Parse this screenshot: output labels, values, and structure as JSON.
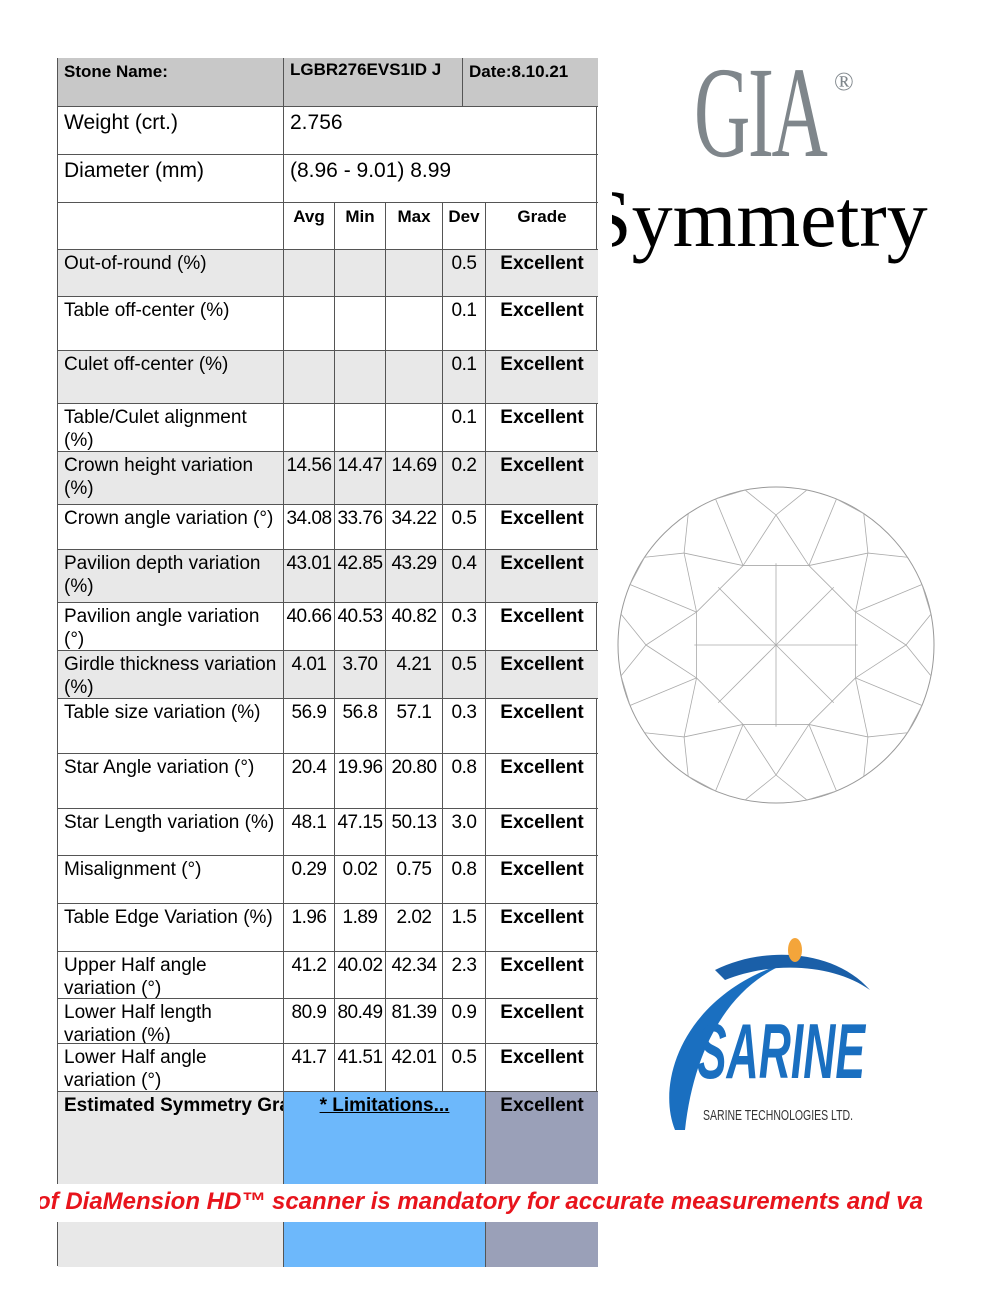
{
  "header": {
    "stone_label": "Stone Name:",
    "stone_value": "LGBR276EVS1ID J",
    "date": "Date:8.10.21"
  },
  "weight": {
    "label": "Weight (crt.)",
    "value": "2.756"
  },
  "diameter": {
    "label": "Diameter (mm)",
    "value": "(8.96 - 9.01) 8.99"
  },
  "columns": [
    "Avg",
    "Min",
    "Max",
    "Dev",
    "Grade"
  ],
  "rows": [
    {
      "label": "Out-of-round (%)",
      "avg": "",
      "min": "",
      "max": "",
      "dev": "0.5",
      "grade": "Excellent"
    },
    {
      "label": "Table off-center (%)",
      "avg": "",
      "min": "",
      "max": "",
      "dev": "0.1",
      "grade": "Excellent"
    },
    {
      "label": "Culet off-center (%)",
      "avg": "",
      "min": "",
      "max": "",
      "dev": "0.1",
      "grade": "Excellent"
    },
    {
      "label": "Table/Culet alignment (%)",
      "avg": "",
      "min": "",
      "max": "",
      "dev": "0.1",
      "grade": "Excellent"
    },
    {
      "label": "Crown height variation (%)",
      "avg": "14.56",
      "min": "14.47",
      "max": "14.69",
      "dev": "0.2",
      "grade": "Excellent"
    },
    {
      "label": "Crown angle variation (°)",
      "avg": "34.08",
      "min": "33.76",
      "max": "34.22",
      "dev": "0.5",
      "grade": "Excellent"
    },
    {
      "label": "Pavilion depth variation (%)",
      "avg": "43.01",
      "min": "42.85",
      "max": "43.29",
      "dev": "0.4",
      "grade": "Excellent"
    },
    {
      "label": "Pavilion angle variation (°)",
      "avg": "40.66",
      "min": "40.53",
      "max": "40.82",
      "dev": "0.3",
      "grade": "Excellent"
    },
    {
      "label": "Girdle thickness variation (%)",
      "avg": "4.01",
      "min": "3.70",
      "max": "4.21",
      "dev": "0.5",
      "grade": "Excellent"
    },
    {
      "label": "Table size variation (%)",
      "avg": "56.9",
      "min": "56.8",
      "max": "57.1",
      "dev": "0.3",
      "grade": "Excellent"
    },
    {
      "label": "Star Angle variation (°)",
      "avg": "20.4",
      "min": "19.96",
      "max": "20.80",
      "dev": "0.8",
      "grade": "Excellent"
    },
    {
      "label": "Star Length variation (%)",
      "avg": "48.1",
      "min": "47.15",
      "max": "50.13",
      "dev": "3.0",
      "grade": "Excellent"
    },
    {
      "label": "Misalignment (°)",
      "avg": "0.29",
      "min": "0.02",
      "max": "0.75",
      "dev": "0.8",
      "grade": "Excellent"
    },
    {
      "label": "Table Edge Variation (%)",
      "avg": "1.96",
      "min": "1.89",
      "max": "2.02",
      "dev": "1.5",
      "grade": "Excellent"
    },
    {
      "label": "Upper Half angle variation (°)",
      "avg": "41.2",
      "min": "40.02",
      "max": "42.34",
      "dev": "2.3",
      "grade": "Excellent"
    },
    {
      "label": "Lower Half length variation (%)",
      "avg": "80.9",
      "min": "80.49",
      "max": "81.39",
      "dev": "0.9",
      "grade": "Excellent"
    },
    {
      "label": "Lower Half angle variation (°)",
      "avg": "41.7",
      "min": "41.51",
      "max": "42.01",
      "dev": "0.5",
      "grade": "Excellent"
    }
  ],
  "summary": {
    "label": "Estimated Symmetry Grade",
    "link": "* Limitations...",
    "grade": "Excellent"
  },
  "banner": "of DiaMension HD™ scanner is mandatory for accurate measurements and va",
  "logos": {
    "gia": "GIA",
    "gia_reg": "®",
    "symmetry": "Symmetry",
    "sarine": "SARINE",
    "sarine_sub": "SARINE TECHNOLOGIES LTD."
  },
  "colors": {
    "banner_red": "#e8141c",
    "limit_blue": "#6db8fb",
    "grade_slate": "#9aa0b8",
    "sarine_blue": "#1a6fc0"
  }
}
